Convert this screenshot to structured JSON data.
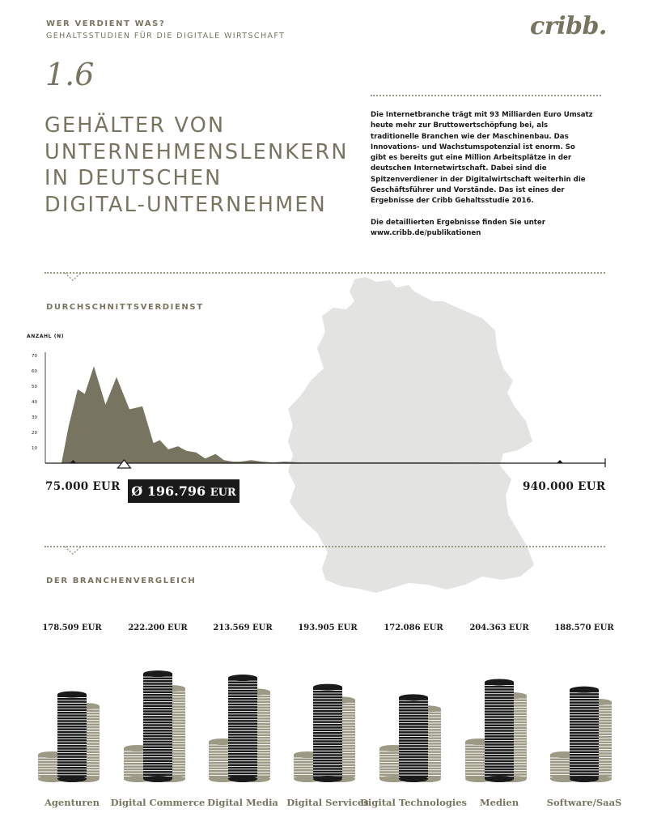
{
  "header": {
    "kicker": "WER VERDIENT WAS?",
    "subkicker": "GEHALTSSTUDIEN FÜR DIE DIGITALE WIRTSCHAFT",
    "logo": "cribb.",
    "number": "1.6",
    "title_lines": [
      "GEHÄLTER VON",
      "UNTERNEHMENSLENKERN",
      "IN DEUTSCHEN",
      "DIGITAL-UNTERNEHMEN"
    ]
  },
  "intro": {
    "paragraph": "Die Internetbranche trägt mit 93 Milliarden Euro Umsatz heute mehr zur Bruttowertschöpfung bei, als traditionelle Branchen wie der Maschinenbau. Das Innovations- und Wachstumspotenzial ist enorm. So gibt es bereits gut eine Million Arbeitsplätze in der deutschen Internetwirtschaft. Dabei sind die Spitzenverdiener in der Digitalwirtschaft weiterhin die Geschäftsführer und Vorstände. Das ist eines der Ergebnisse der Cribb Gehaltsstudie 2016.",
    "results_text": "Die detaillierten Ergebnisse finden Sie unter",
    "results_link": "www.cribb.de/publikationen"
  },
  "colors": {
    "accent": "#77755f",
    "dark": "#1a1a1a",
    "map": "#e3e3e1",
    "coin_light": "#9c9a84"
  },
  "map_icon": "germany-map",
  "chart_data": [
    {
      "type": "area",
      "title": "DURCHSCHNITTSVERDIENST",
      "ylabel": "ANZAHL (N)",
      "yticks": [
        10,
        20,
        30,
        40,
        50,
        60,
        70
      ],
      "ylim": [
        0,
        70
      ],
      "xlim": [
        75000,
        940000
      ],
      "min_label": "75.000 EUR",
      "max_label": "940.000 EUR",
      "average_value": 196796,
      "average_label": "Ø 196.796",
      "average_currency": "EUR",
      "x": [
        75000,
        100000,
        111000,
        125000,
        136000,
        150000,
        168000,
        185000,
        205000,
        225000,
        242000,
        252000,
        265000,
        280000,
        293000,
        308000,
        322000,
        338000,
        351000,
        365000,
        376000,
        393000,
        410000,
        427000,
        445000,
        470000,
        505000,
        560000,
        620000,
        690000,
        780000,
        860000,
        880000,
        940000
      ],
      "y": [
        0,
        0,
        24,
        48,
        45,
        63,
        38,
        56,
        35,
        37,
        13,
        15,
        9,
        11,
        8,
        7,
        3,
        6,
        2,
        1,
        1,
        2,
        1,
        0.5,
        1,
        0.5,
        0.5,
        0.5,
        0.5,
        0.5,
        0.3,
        0,
        0,
        0
      ],
      "grid": false
    },
    {
      "type": "bar",
      "title": "DER BRANCHENVERGLEICH",
      "categories": [
        "Agenturen",
        "Digital Commerce",
        "Digital Media",
        "Digital Services",
        "Digital Technologies",
        "Medien",
        "Software/SaaS"
      ],
      "values": [
        178509,
        222200,
        213569,
        193905,
        172086,
        204363,
        188570
      ],
      "value_labels": [
        "178.509 EUR",
        "222.200 EUR",
        "213.569 EUR",
        "193.905 EUR",
        "172.086 EUR",
        "204.363 EUR",
        "188.570 EUR"
      ]
    }
  ]
}
